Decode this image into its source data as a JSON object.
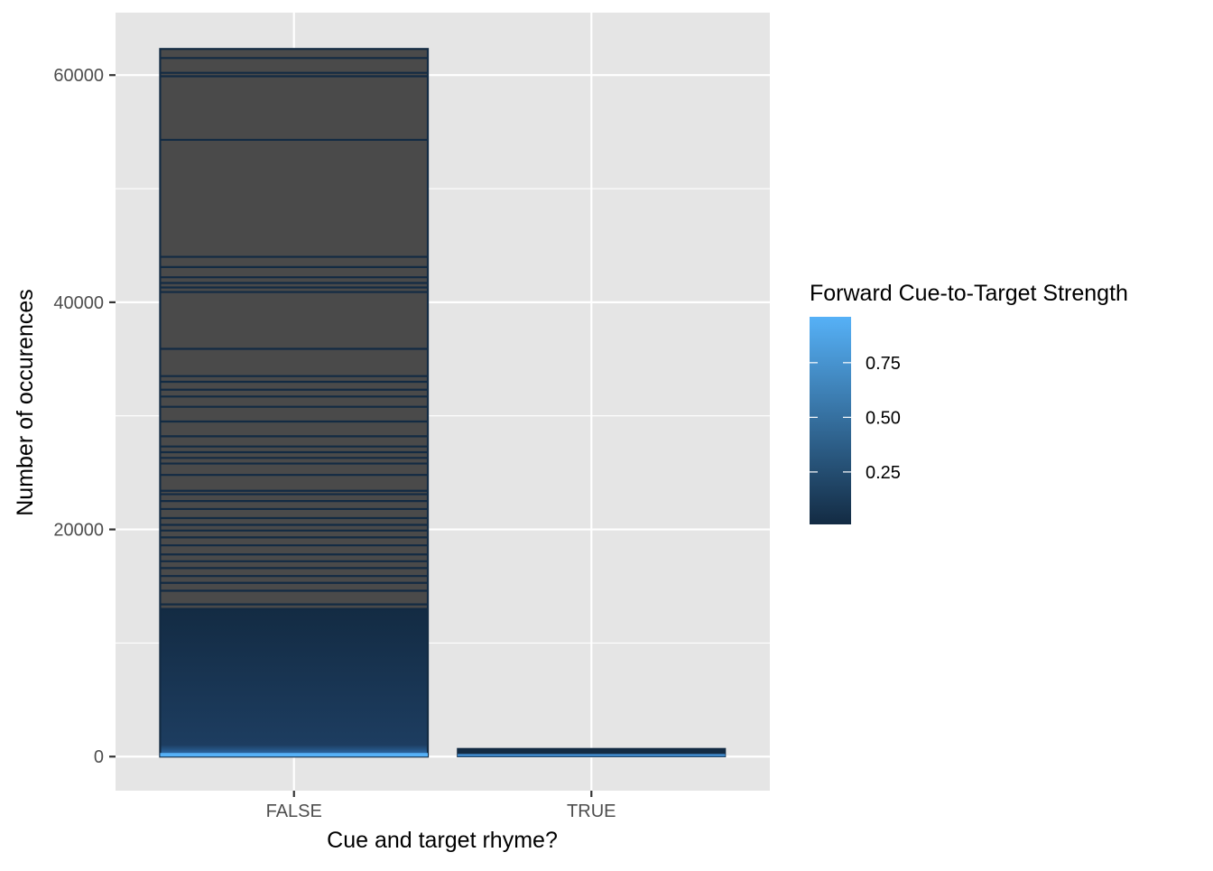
{
  "chart_data": {
    "type": "bar",
    "stacked": true,
    "xlabel": "Cue and target rhyme?",
    "ylabel": "Number of occurences",
    "categories": [
      "FALSE",
      "TRUE"
    ],
    "totals": [
      62300,
      700
    ],
    "ylim": [
      -3000,
      65500
    ],
    "yticks": [
      0,
      20000,
      40000,
      60000
    ],
    "yticks_minor": [
      10000,
      30000,
      50000
    ],
    "grid": true,
    "legend": {
      "title": "Forward Cue-to-Target Strength",
      "position": "right",
      "type": "colorbar",
      "range": [
        0.01,
        0.96
      ],
      "ticks": [
        0.25,
        0.5,
        0.75
      ],
      "tick_labels": [
        "0.25",
        "0.50",
        "0.75"
      ],
      "low_color": "#132B43",
      "high_color": "#56B1F7"
    },
    "missing_fill": "#4a4a4a",
    "outline_color": "#132B43",
    "gradient_top_fraction": 0.21,
    "segment_boundaries": [
      13000,
      13400,
      14600,
      15300,
      15900,
      16600,
      17200,
      17800,
      18600,
      19300,
      19900,
      20400,
      21000,
      21800,
      22500,
      23100,
      23400,
      24800,
      25800,
      26300,
      26800,
      27300,
      28200,
      29500,
      30800,
      31700,
      32300,
      33000,
      33500,
      35900,
      40900,
      41300,
      41700,
      42200,
      43100,
      44000,
      54300,
      59900,
      60200,
      61500
    ]
  },
  "colors": {
    "panel_background": "#e5e5e5",
    "gridline": "#ffffff",
    "tick_label": "#4d4d4d"
  }
}
